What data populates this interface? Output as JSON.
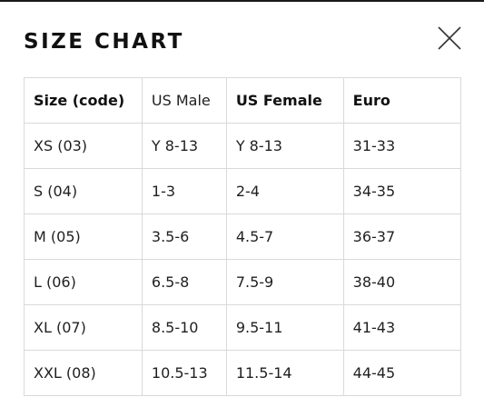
{
  "title": "SIZE CHART",
  "close_icon": "close-icon",
  "table": {
    "headers": [
      "Size (code)",
      "US Male",
      "US Female",
      "Euro"
    ],
    "rows": [
      [
        "XS (03)",
        "Y 8-13",
        "Y 8-13",
        "31-33"
      ],
      [
        "S (04)",
        "1-3",
        "2-4",
        "34-35"
      ],
      [
        "M (05)",
        "3.5-6",
        "4.5-7",
        "36-37"
      ],
      [
        "L (06)",
        "6.5-8",
        "7.5-9",
        "38-40"
      ],
      [
        "XL (07)",
        "8.5-10",
        "9.5-11",
        "41-43"
      ],
      [
        "XXL (08)",
        "10.5-13",
        "11.5-14",
        "44-45"
      ]
    ]
  }
}
